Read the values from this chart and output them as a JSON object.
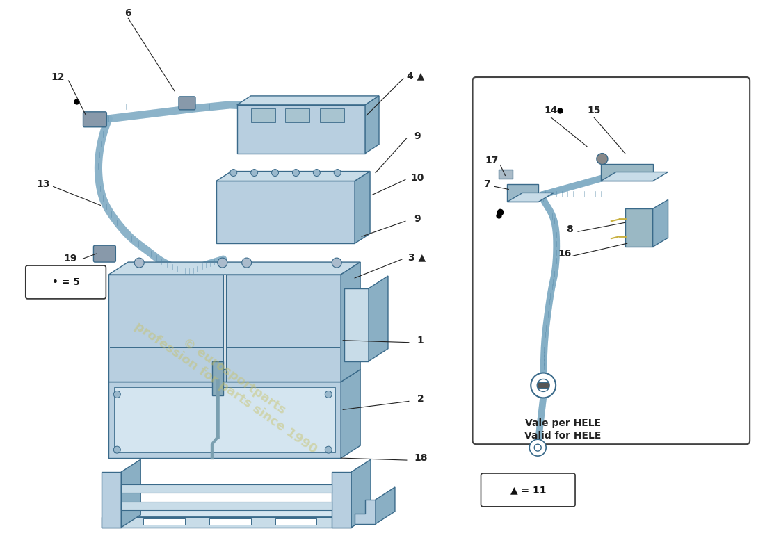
{
  "bg_color": "#ffffff",
  "watermark_line1": "profession for parts since 1990",
  "dot_legend": "• = 5",
  "tri_legend": "▲ = 11",
  "hele_text1": "Vale per HELE",
  "hele_text2": "Valid for HELE",
  "part_color_main": "#b8cfe0",
  "part_color_dark": "#8aafc4",
  "part_color_light": "#d4e5f0",
  "part_color_top": "#c8dce8",
  "edge_color": "#3a6a8a",
  "wire_color": "#9ac0d4",
  "wire_edge": "#5588a8",
  "label_color": "#111111",
  "line_color": "#222222"
}
